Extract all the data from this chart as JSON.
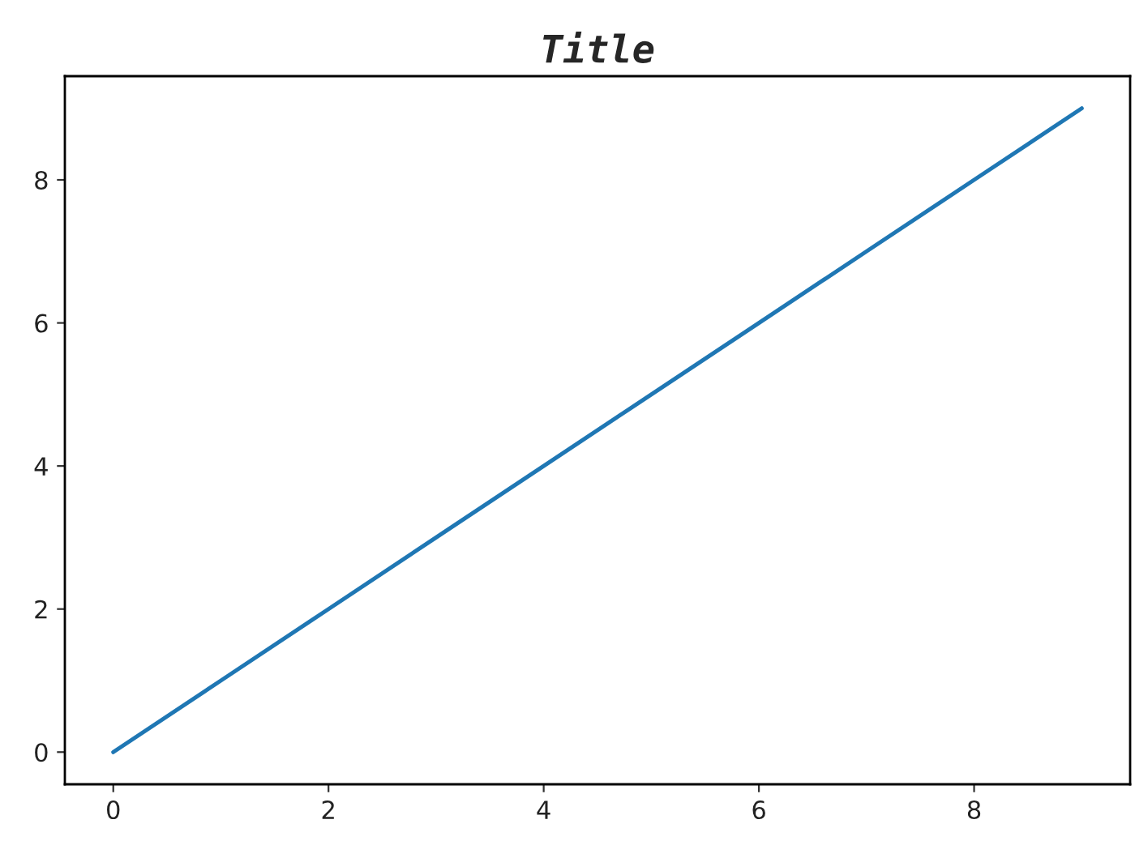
{
  "chart_data": {
    "type": "line",
    "title": "Title",
    "x": [
      0,
      1,
      2,
      3,
      4,
      5,
      6,
      7,
      8,
      9
    ],
    "series": [
      {
        "color": "#1f77b4",
        "values": [
          0,
          1,
          2,
          3,
          4,
          5,
          6,
          7,
          8,
          9
        ]
      }
    ],
    "xlim": [
      -0.45,
      9.45
    ],
    "ylim": [
      -0.45,
      9.45
    ],
    "xticks": [
      0,
      2,
      4,
      6,
      8
    ],
    "yticks": [
      0,
      2,
      4,
      6,
      8
    ],
    "grid": false,
    "marker": "none",
    "line_style": "solid"
  }
}
